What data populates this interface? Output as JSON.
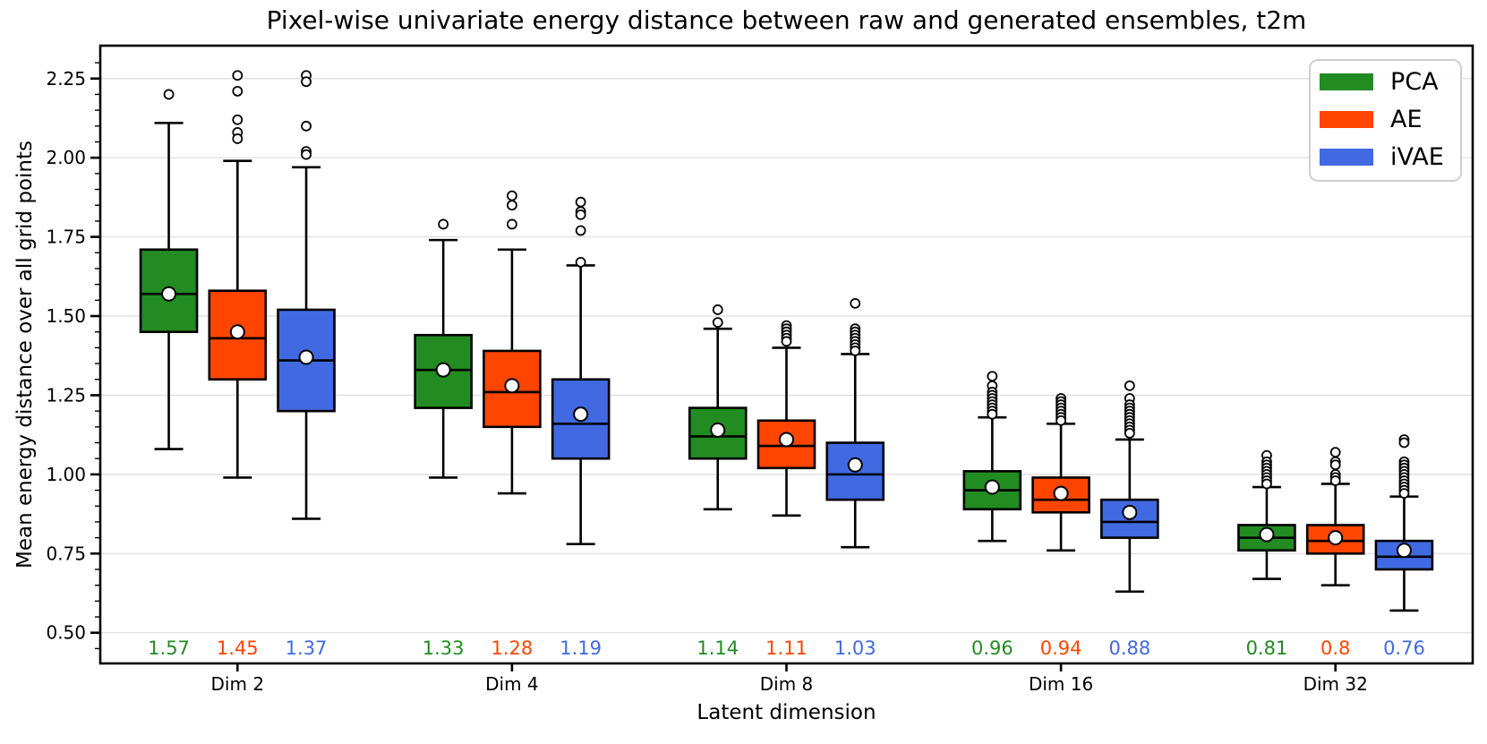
{
  "title": "Pixel-wise univariate energy distance between raw and generated ensembles, t2m",
  "chart_data": {
    "type": "boxplot",
    "title": "Pixel-wise univariate energy distance between raw and generated ensembles, t2m",
    "xlabel": "Latent dimension",
    "ylabel": "Mean energy distance over all grid points",
    "categories": [
      "Dim 2",
      "Dim 4",
      "Dim 8",
      "Dim 16",
      "Dim 32"
    ],
    "yticks": [
      0.5,
      0.75,
      1.0,
      1.25,
      1.5,
      1.75,
      2.0,
      2.25
    ],
    "ytick_labels": [
      "0.50",
      "0.75",
      "1.00",
      "1.25",
      "1.50",
      "1.75",
      "2.00",
      "2.25"
    ],
    "ylim": [
      0.4,
      2.35
    ],
    "grid": "horizontal",
    "grid_color": "#e0e0e0",
    "legend": {
      "position": "upper right",
      "entries": [
        {
          "label": "PCA",
          "color": "#228B22"
        },
        {
          "label": "AE",
          "color": "#FF4500"
        },
        {
          "label": "iVAE",
          "color": "#4169E1"
        }
      ]
    },
    "series": [
      {
        "name": "PCA",
        "color": "#228B22",
        "boxes": [
          {
            "whislo": 1.08,
            "q1": 1.45,
            "med": 1.57,
            "q3": 1.71,
            "whishi": 2.11,
            "mean": 1.57,
            "mean_label": "1.57",
            "fliers": [
              2.2
            ]
          },
          {
            "whislo": 0.99,
            "q1": 1.21,
            "med": 1.33,
            "q3": 1.44,
            "whishi": 1.74,
            "mean": 1.33,
            "mean_label": "1.33",
            "fliers": [
              1.79
            ]
          },
          {
            "whislo": 0.89,
            "q1": 1.05,
            "med": 1.12,
            "q3": 1.21,
            "whishi": 1.46,
            "mean": 1.14,
            "mean_label": "1.14",
            "fliers": [
              1.52,
              1.48
            ]
          },
          {
            "whislo": 0.79,
            "q1": 0.89,
            "med": 0.95,
            "q3": 1.01,
            "whishi": 1.18,
            "mean": 0.96,
            "mean_label": "0.96",
            "fliers": [
              1.31,
              1.28,
              1.26,
              1.25,
              1.24,
              1.23,
              1.22,
              1.21,
              1.2,
              1.19
            ]
          },
          {
            "whislo": 0.67,
            "q1": 0.76,
            "med": 0.8,
            "q3": 0.84,
            "whishi": 0.96,
            "mean": 0.81,
            "mean_label": "0.81",
            "fliers": [
              1.06,
              1.04,
              1.03,
              1.02,
              1.01,
              1.0,
              0.99,
              0.98,
              0.97
            ]
          }
        ]
      },
      {
        "name": "AE",
        "color": "#FF4500",
        "boxes": [
          {
            "whislo": 0.99,
            "q1": 1.3,
            "med": 1.43,
            "q3": 1.58,
            "whishi": 1.99,
            "mean": 1.45,
            "mean_label": "1.45",
            "fliers": [
              2.26,
              2.21,
              2.12,
              2.08,
              2.06
            ]
          },
          {
            "whislo": 0.94,
            "q1": 1.15,
            "med": 1.26,
            "q3": 1.39,
            "whishi": 1.71,
            "mean": 1.28,
            "mean_label": "1.28",
            "fliers": [
              1.88,
              1.85,
              1.79
            ]
          },
          {
            "whislo": 0.87,
            "q1": 1.02,
            "med": 1.09,
            "q3": 1.17,
            "whishi": 1.4,
            "mean": 1.11,
            "mean_label": "1.11",
            "fliers": [
              1.47,
              1.46,
              1.45,
              1.44,
              1.43,
              1.42
            ]
          },
          {
            "whislo": 0.76,
            "q1": 0.88,
            "med": 0.92,
            "q3": 0.99,
            "whishi": 1.16,
            "mean": 0.94,
            "mean_label": "0.94",
            "fliers": [
              1.24,
              1.23,
              1.22,
              1.21,
              1.2,
              1.19,
              1.18,
              1.17
            ]
          },
          {
            "whislo": 0.65,
            "q1": 0.75,
            "med": 0.79,
            "q3": 0.84,
            "whishi": 0.97,
            "mean": 0.8,
            "mean_label": "0.8",
            "fliers": [
              1.07,
              1.04,
              1.03,
              1.0,
              0.99,
              0.98
            ]
          }
        ]
      },
      {
        "name": "iVAE",
        "color": "#4169E1",
        "boxes": [
          {
            "whislo": 0.86,
            "q1": 1.2,
            "med": 1.36,
            "q3": 1.52,
            "whishi": 1.97,
            "mean": 1.37,
            "mean_label": "1.37",
            "fliers": [
              2.26,
              2.24,
              2.1,
              2.02,
              2.01
            ]
          },
          {
            "whislo": 0.78,
            "q1": 1.05,
            "med": 1.16,
            "q3": 1.3,
            "whishi": 1.66,
            "mean": 1.19,
            "mean_label": "1.19",
            "fliers": [
              1.86,
              1.83,
              1.82,
              1.77,
              1.67
            ]
          },
          {
            "whislo": 0.77,
            "q1": 0.92,
            "med": 1.0,
            "q3": 1.1,
            "whishi": 1.38,
            "mean": 1.03,
            "mean_label": "1.03",
            "fliers": [
              1.54,
              1.46,
              1.45,
              1.44,
              1.43,
              1.42,
              1.41,
              1.4,
              1.39
            ]
          },
          {
            "whislo": 0.63,
            "q1": 0.8,
            "med": 0.85,
            "q3": 0.92,
            "whishi": 1.11,
            "mean": 0.88,
            "mean_label": "0.88",
            "fliers": [
              1.28,
              1.24,
              1.22,
              1.21,
              1.2,
              1.19,
              1.18,
              1.17,
              1.16,
              1.15,
              1.14,
              1.13
            ]
          },
          {
            "whislo": 0.57,
            "q1": 0.7,
            "med": 0.74,
            "q3": 0.79,
            "whishi": 0.93,
            "mean": 0.76,
            "mean_label": "0.76",
            "fliers": [
              1.11,
              1.1,
              1.04,
              1.03,
              1.02,
              1.01,
              1.0,
              0.99,
              0.98,
              0.97,
              0.96,
              0.95,
              0.94
            ]
          }
        ]
      }
    ]
  }
}
